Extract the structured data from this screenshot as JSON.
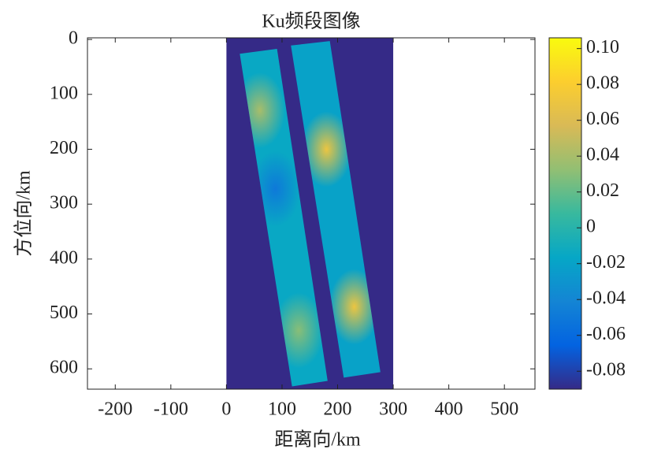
{
  "chart_data": {
    "type": "image",
    "title": "Ku频段图像",
    "xlabel": "距离向/km",
    "ylabel": "方位向/km",
    "xlim": [
      -250,
      555
    ],
    "xticks": [
      -200,
      -100,
      0,
      100,
      200,
      300,
      400,
      500
    ],
    "ylim": [
      -3,
      637
    ],
    "yticks": [
      0,
      100,
      200,
      300,
      400,
      500,
      600
    ],
    "y_reversed": true,
    "colormap": "parula",
    "clim": [
      -0.09,
      0.106
    ],
    "cticks": [
      -0.08,
      -0.06,
      -0.04,
      -0.02,
      0,
      0.02,
      0.04,
      {
        "value": 0.1,
        "label": "0.10"
      },
      0.06,
      0.08
    ],
    "image_extent": {
      "x": [
        0,
        300
      ],
      "y": [
        -3,
        637
      ],
      "value": -0.09
    },
    "strips": [
      {
        "corners": [
          [
            24,
            26
          ],
          [
            91,
            17
          ],
          [
            182,
            622
          ],
          [
            118,
            632
          ]
        ],
        "value": -0.015
      },
      {
        "corners": [
          [
            116,
            11
          ],
          [
            186,
            3
          ],
          [
            277,
            606
          ],
          [
            211,
            616
          ]
        ],
        "value": -0.02
      }
    ],
    "hotspots": [
      {
        "x": 60,
        "y": 129,
        "value": 0.04
      },
      {
        "x": 88,
        "y": 272,
        "value": -0.05
      },
      {
        "x": 130,
        "y": 530,
        "value": 0.03
      },
      {
        "x": 180,
        "y": 200,
        "value": 0.07
      },
      {
        "x": 230,
        "y": 487,
        "value": 0.07
      }
    ]
  }
}
